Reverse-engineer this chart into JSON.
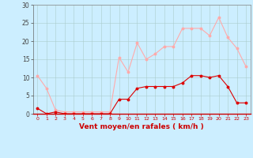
{
  "x": [
    0,
    1,
    2,
    3,
    4,
    5,
    6,
    7,
    8,
    9,
    10,
    11,
    12,
    13,
    14,
    15,
    16,
    17,
    18,
    19,
    20,
    21,
    22,
    23
  ],
  "y_mean": [
    1.5,
    0.0,
    0.5,
    0.0,
    0.0,
    0.0,
    0.0,
    0.0,
    0.0,
    4.0,
    4.0,
    7.0,
    7.5,
    7.5,
    7.5,
    7.5,
    8.5,
    10.5,
    10.5,
    10.0,
    10.5,
    7.5,
    3.0,
    3.0
  ],
  "y_gust": [
    10.5,
    7.0,
    1.0,
    0.5,
    0.5,
    0.5,
    0.5,
    0.5,
    0.5,
    15.5,
    11.5,
    19.5,
    15.0,
    16.5,
    18.5,
    18.5,
    23.5,
    23.5,
    23.5,
    21.5,
    26.5,
    21.0,
    18.0,
    13.0
  ],
  "color_mean": "#dd0000",
  "color_gust": "#ffaaaa",
  "bg_color": "#cceeff",
  "grid_color": "#aacccc",
  "xlabel": "Vent moyen/en rafales ( km/h )",
  "xlabel_color": "#cc0000",
  "tick_color": "#cc0000",
  "ytick_color": "#444444",
  "ylim": [
    0,
    30
  ],
  "yticks": [
    0,
    5,
    10,
    15,
    20,
    25,
    30
  ],
  "xlim": [
    -0.5,
    23.5
  ]
}
